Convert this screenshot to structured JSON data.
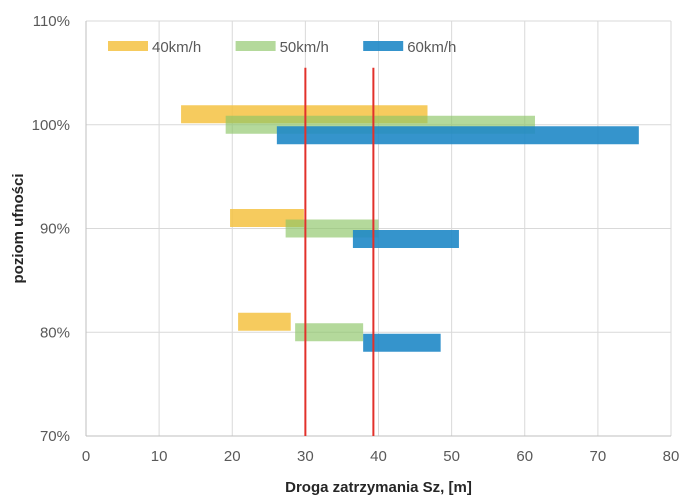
{
  "chart_data": {
    "type": "bar",
    "orientation": "horizontal-range",
    "xlabel": "Droga zatrzymania Sz, [m]",
    "ylabel": "poziom ufności",
    "xlim": [
      0,
      80
    ],
    "xticks": [
      0,
      10,
      20,
      30,
      40,
      50,
      60,
      70,
      80
    ],
    "ylim": [
      70,
      110
    ],
    "yticks": [
      70,
      80,
      90,
      100,
      110
    ],
    "ytick_labels": [
      "70%",
      "80%",
      "90%",
      "100%",
      "110%"
    ],
    "grid": true,
    "legend_position": "top-left",
    "series": [
      {
        "name": "40km/h",
        "color": "#f5c242",
        "opacity": 0.85,
        "offset": 1,
        "ranges": [
          {
            "level": 80,
            "start": 20.8,
            "end": 28.0
          },
          {
            "level": 90,
            "start": 19.7,
            "end": 29.8
          },
          {
            "level": 100,
            "start": 13.0,
            "end": 46.7
          }
        ]
      },
      {
        "name": "50km/h",
        "color": "#8cc466",
        "opacity": 0.65,
        "offset": 0,
        "ranges": [
          {
            "level": 80,
            "start": 28.6,
            "end": 37.9
          },
          {
            "level": 90,
            "start": 27.3,
            "end": 40.0
          },
          {
            "level": 100,
            "start": 19.1,
            "end": 61.4
          }
        ]
      },
      {
        "name": "60km/h",
        "color": "#1f88c7",
        "opacity": 0.9,
        "offset": -1,
        "ranges": [
          {
            "level": 80,
            "start": 37.9,
            "end": 48.5
          },
          {
            "level": 90,
            "start": 36.5,
            "end": 51.0
          },
          {
            "level": 100,
            "start": 26.1,
            "end": 75.6
          }
        ]
      }
    ],
    "reference_lines": [
      {
        "x": 30,
        "y_from": 70,
        "y_to": 105.5,
        "color": "#e2312b"
      },
      {
        "x": 39.3,
        "y_from": 70,
        "y_to": 105.5,
        "color": "#e2312b"
      }
    ]
  }
}
